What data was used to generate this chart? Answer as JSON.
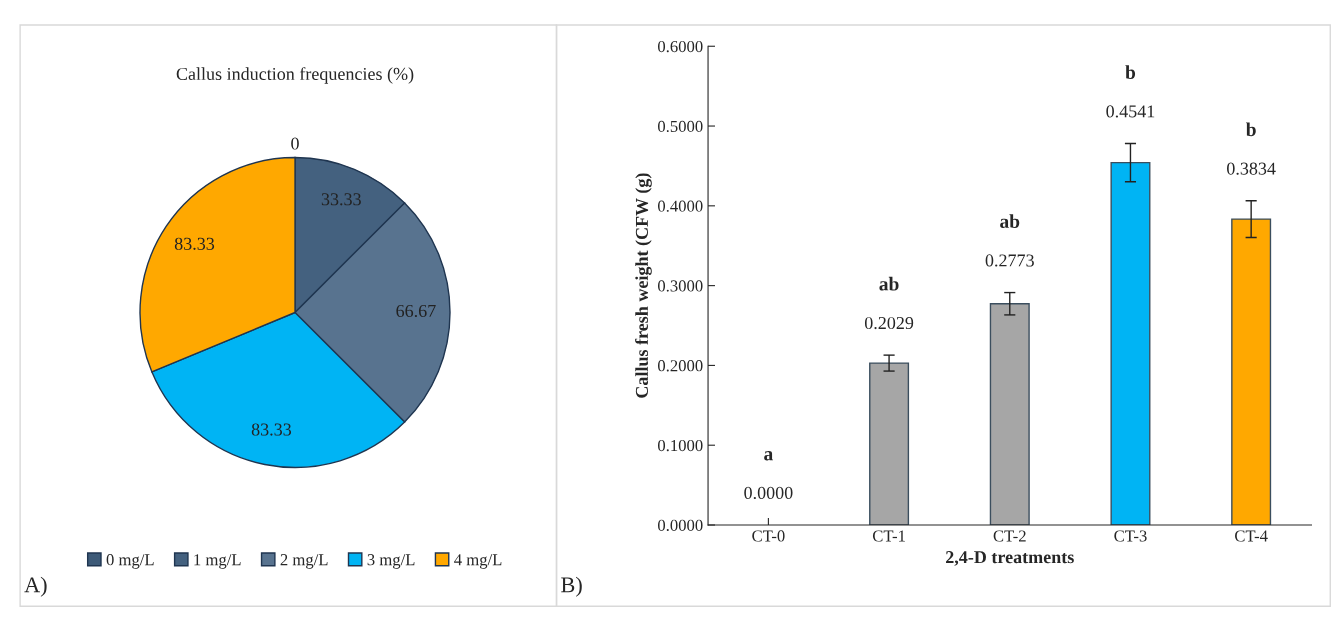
{
  "chart_data": [
    {
      "type": "pie",
      "title": "Callus induction frequencies (%)",
      "categories": [
        "0 mg/L",
        "1 mg/L",
        "2 mg/L",
        "3 mg/L",
        "4 mg/L"
      ],
      "values": [
        0,
        33.33,
        66.67,
        83.33,
        83.33
      ],
      "colors": [
        "#3d5a78",
        "#44617f",
        "#58738f",
        "#00b4f4",
        "#ffa800"
      ],
      "value_labels": [
        "0",
        "33.33",
        "66.67",
        "83.33",
        "83.33"
      ],
      "legend": "bottom",
      "annotations": [
        "A)"
      ]
    },
    {
      "type": "bar",
      "xlabel": "2,4-D treatments",
      "ylabel": "Callus fresh weight (CFW (g)",
      "categories": [
        "CT-0",
        "CT-1",
        "CT-2",
        "CT-3",
        "CT-4"
      ],
      "values": [
        0,
        0.2029,
        0.2773,
        0.4541,
        0.3834
      ],
      "colors": [
        "#a6a6a6",
        "#a6a6a6",
        "#a6a6a6",
        "#00b4f4",
        "#ffa800"
      ],
      "errors": [
        null,
        0.01,
        0.014,
        0.024,
        0.023
      ],
      "value_labels": [
        "0.0000",
        "0.2029",
        "0.2773",
        "0.4541",
        "0.3834"
      ],
      "ylim": [
        0,
        0.6
      ],
      "yticks": [
        {
          "value": 0,
          "label": "0.0000"
        },
        {
          "value": 0.1,
          "label": "0.1000"
        },
        {
          "value": 0.2,
          "label": "0.2000"
        },
        {
          "value": 0.3,
          "label": "0.3000"
        },
        {
          "value": 0.4,
          "label": "0.4000"
        },
        {
          "value": 0.5,
          "label": "0.5000"
        },
        {
          "value": 0.6,
          "label": "0.6000"
        }
      ],
      "grid": false,
      "legend": false,
      "annotations": [
        "a",
        "ab",
        "ab",
        "b",
        "b",
        "B)"
      ]
    }
  ]
}
